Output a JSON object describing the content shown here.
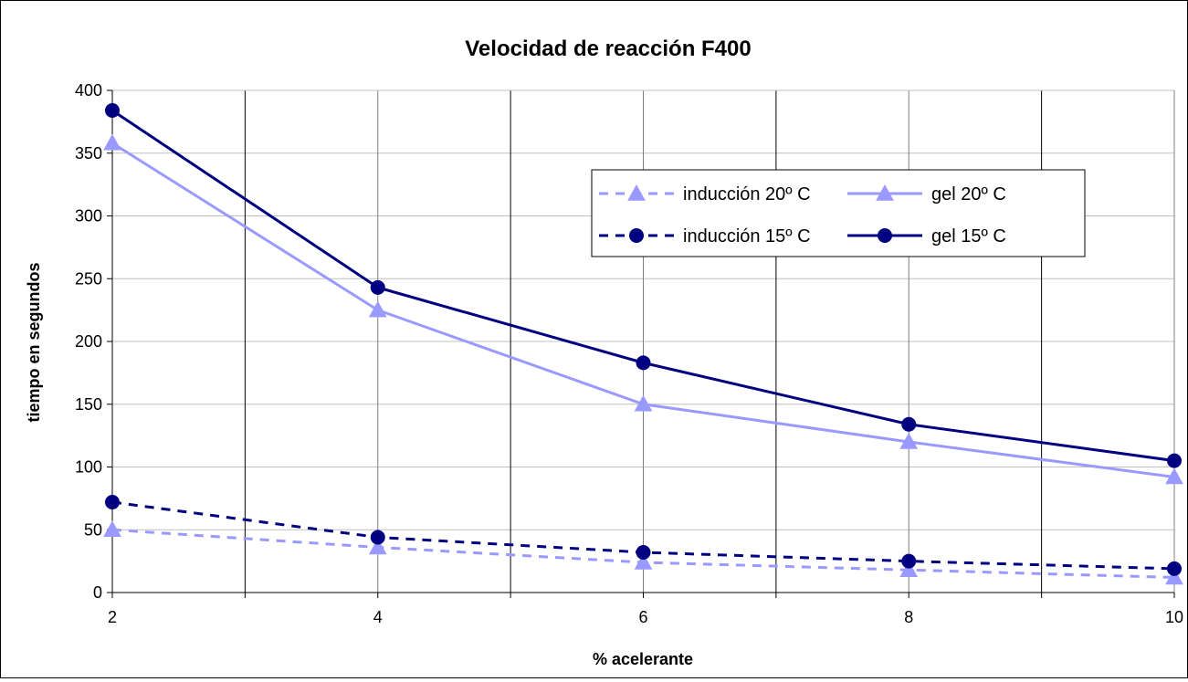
{
  "chart_data": {
    "type": "line",
    "title": "Velocidad de reacción F400",
    "xlabel": "% acelerante",
    "ylabel": "tiempo en segundos",
    "x": [
      2,
      4,
      6,
      8,
      10
    ],
    "x_ticks": [
      "2",
      "4",
      "6",
      "8",
      "10"
    ],
    "y_ticks": [
      "0",
      "50",
      "100",
      "150",
      "200",
      "250",
      "300",
      "350",
      "400"
    ],
    "xlim": [
      2,
      10
    ],
    "ylim": [
      0,
      400
    ],
    "grid": true,
    "legend_position": "top-right",
    "series": [
      {
        "name": "inducción 20º C",
        "values": [
          50,
          36,
          24,
          18,
          12
        ],
        "color": "#9999ff",
        "dash": true,
        "marker": "triangle"
      },
      {
        "name": "gel 20º C",
        "values": [
          358,
          225,
          150,
          120,
          92
        ],
        "color": "#9999ff",
        "dash": false,
        "marker": "triangle"
      },
      {
        "name": "inducción 15º C",
        "values": [
          72,
          44,
          32,
          25,
          19
        ],
        "color": "#000080",
        "dash": true,
        "marker": "circle"
      },
      {
        "name": "gel 15º C",
        "values": [
          384,
          243,
          183,
          134,
          105
        ],
        "color": "#000080",
        "dash": false,
        "marker": "circle"
      }
    ]
  }
}
